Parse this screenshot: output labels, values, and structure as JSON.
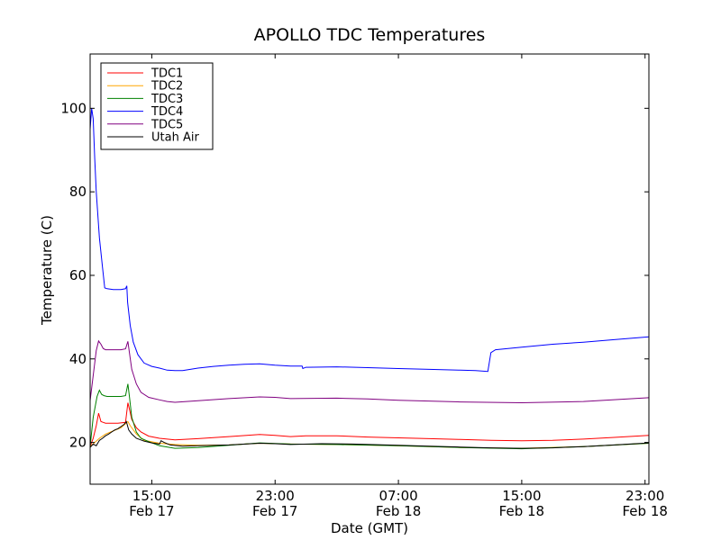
{
  "chart_data": {
    "type": "line",
    "title": "APOLLO TDC Temperatures",
    "xlabel": "Date (GMT)",
    "ylabel": "Temperature (C)",
    "xlim": [
      11.0,
      47.25
    ],
    "ylim": [
      10,
      113
    ],
    "grid": false,
    "legend_position": "top-left",
    "yticks": [
      20,
      40,
      60,
      80,
      100
    ],
    "ytick_labels": [
      "20",
      "40",
      "60",
      "80",
      "100"
    ],
    "xticks": [
      {
        "value": 15,
        "time": "15:00",
        "date": "Feb 17"
      },
      {
        "value": 23,
        "time": "23:00",
        "date": "Feb 17"
      },
      {
        "value": 31,
        "time": "07:00",
        "date": "Feb 18"
      },
      {
        "value": 39,
        "time": "15:00",
        "date": "Feb 18"
      },
      {
        "value": 47,
        "time": "23:00",
        "date": "Feb 18"
      }
    ],
    "series": [
      {
        "name": "TDC1",
        "color": "#ff0000",
        "x": [
          11.0,
          11.2,
          11.4,
          11.55,
          11.7,
          11.85,
          12.0,
          12.3,
          12.8,
          13.3,
          13.45,
          13.55,
          13.7,
          14.0,
          14.3,
          14.8,
          15.5,
          16.5,
          18.0,
          20.0,
          22.0,
          23.0,
          24.0,
          25.0,
          27.0,
          29.0,
          31.0,
          33.0,
          35.0,
          37.0,
          39.0,
          41.0,
          43.0,
          45.0,
          47.25
        ],
        "y": [
          19.0,
          21.0,
          24.0,
          27.0,
          25.0,
          24.8,
          24.6,
          24.6,
          24.6,
          24.8,
          29.5,
          28.0,
          25.5,
          23.5,
          22.5,
          21.5,
          21.0,
          20.6,
          20.9,
          21.4,
          21.9,
          21.7,
          21.4,
          21.6,
          21.6,
          21.3,
          21.1,
          20.9,
          20.7,
          20.5,
          20.4,
          20.5,
          20.8,
          21.2,
          21.7
        ]
      },
      {
        "name": "TDC2",
        "color": "#ffa500",
        "x": [
          11.0,
          11.3,
          11.6,
          12.0,
          13.0,
          13.45,
          13.6,
          14.0,
          14.5,
          15.5,
          16.5,
          18.0,
          20.0,
          22.0,
          24.0,
          27.0,
          31.0,
          35.0,
          39.0,
          43.0,
          47.25
        ],
        "y": [
          19.0,
          20.0,
          21.0,
          22.0,
          23.5,
          25.0,
          24.0,
          22.0,
          20.5,
          19.8,
          19.5,
          19.3,
          19.4,
          19.8,
          19.6,
          19.5,
          19.2,
          18.8,
          18.6,
          19.0,
          19.8
        ]
      },
      {
        "name": "TDC3",
        "color": "#008000",
        "x": [
          11.0,
          11.2,
          11.45,
          11.6,
          11.75,
          11.9,
          12.1,
          12.5,
          13.0,
          13.3,
          13.45,
          13.55,
          13.7,
          14.0,
          14.3,
          14.8,
          15.5,
          16.5,
          18.0,
          20.0,
          22.0,
          24.0,
          27.0,
          31.0,
          35.0,
          39.0,
          43.0,
          47.25
        ],
        "y": [
          19.0,
          26.0,
          31.0,
          32.5,
          31.5,
          31.2,
          31.0,
          31.0,
          31.0,
          31.2,
          34.0,
          31.0,
          26.0,
          22.5,
          21.0,
          20.2,
          19.2,
          18.6,
          18.8,
          19.3,
          19.9,
          19.6,
          19.5,
          19.2,
          18.8,
          18.5,
          19.0,
          19.8
        ]
      },
      {
        "name": "TDC4",
        "color": "#0000ff",
        "x": [
          11.0,
          11.1,
          11.2,
          11.3,
          11.4,
          11.6,
          11.8,
          11.95,
          12.1,
          12.5,
          13.0,
          13.3,
          13.38,
          13.43,
          13.6,
          13.8,
          14.1,
          14.5,
          15.0,
          15.5,
          16.0,
          16.5,
          17.0,
          18.0,
          19.0,
          20.0,
          21.0,
          22.0,
          23.0,
          24.0,
          24.75,
          24.8,
          25.0,
          27.0,
          29.0,
          31.0,
          33.0,
          35.0,
          36.0,
          36.8,
          37.0,
          37.3,
          39.0,
          41.0,
          43.0,
          45.0,
          47.25
        ],
        "y": [
          95.0,
          100.0,
          97.5,
          88.0,
          80.0,
          69.0,
          62.0,
          57.0,
          56.8,
          56.6,
          56.6,
          56.8,
          57.5,
          53.5,
          48.0,
          44.0,
          41.0,
          39.0,
          38.2,
          37.8,
          37.3,
          37.2,
          37.2,
          37.8,
          38.2,
          38.5,
          38.7,
          38.8,
          38.5,
          38.3,
          38.3,
          37.7,
          38.0,
          38.1,
          37.9,
          37.7,
          37.5,
          37.3,
          37.2,
          37.0,
          41.5,
          42.2,
          42.8,
          43.5,
          44.0,
          44.6,
          45.3
        ]
      },
      {
        "name": "TDC5",
        "color": "#800080",
        "x": [
          11.0,
          11.2,
          11.4,
          11.55,
          11.7,
          11.85,
          12.0,
          12.5,
          13.0,
          13.3,
          13.45,
          13.55,
          13.7,
          14.0,
          14.3,
          14.8,
          15.5,
          16.0,
          16.5,
          18.0,
          20.0,
          22.0,
          23.0,
          24.0,
          27.0,
          29.0,
          31.0,
          35.0,
          39.0,
          43.0,
          47.25
        ],
        "y": [
          30.0,
          36.0,
          42.0,
          44.3,
          43.5,
          42.5,
          42.2,
          42.2,
          42.2,
          42.4,
          44.2,
          41.5,
          37.5,
          34.0,
          32.0,
          30.8,
          30.2,
          29.8,
          29.6,
          30.0,
          30.5,
          30.9,
          30.8,
          30.5,
          30.6,
          30.4,
          30.1,
          29.7,
          29.5,
          29.8,
          30.7
        ]
      },
      {
        "name": "Utah Air",
        "color": "#000000",
        "x": [
          11.0,
          11.2,
          11.4,
          11.6,
          11.8,
          12.0,
          12.2,
          12.4,
          12.6,
          12.8,
          13.0,
          13.2,
          13.35,
          13.5,
          13.7,
          14.0,
          14.5,
          15.0,
          15.5,
          15.6,
          15.8,
          16.2,
          17.0,
          18.0,
          20.0,
          22.0,
          23.0,
          24.0,
          26.0,
          28.0,
          31.0,
          33.0,
          35.0,
          37.0,
          39.0,
          41.0,
          43.0,
          45.0,
          47.25
        ],
        "y": [
          18.8,
          19.6,
          19.2,
          20.5,
          21.0,
          21.6,
          22.0,
          22.5,
          23.0,
          23.3,
          23.8,
          24.3,
          25.0,
          23.0,
          22.0,
          21.0,
          20.3,
          19.9,
          19.6,
          20.4,
          20.0,
          19.4,
          19.1,
          19.2,
          19.4,
          19.8,
          19.7,
          19.5,
          19.7,
          19.6,
          19.3,
          19.1,
          18.9,
          18.7,
          18.6,
          18.7,
          19.0,
          19.4,
          19.9
        ]
      }
    ]
  }
}
